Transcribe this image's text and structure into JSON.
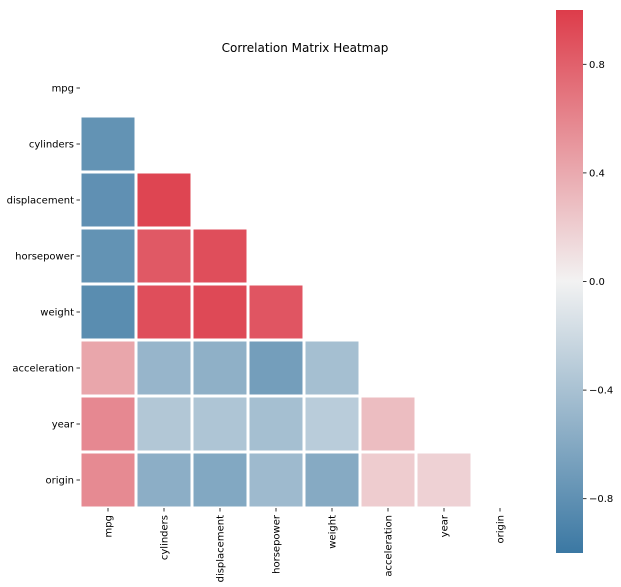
{
  "chart_data": {
    "type": "heatmap",
    "title": "Correlation Matrix Heatmap",
    "variables": [
      "mpg",
      "cylinders",
      "displacement",
      "horsepower",
      "weight",
      "acceleration",
      "year",
      "origin"
    ],
    "mask": "upper-triangle-including-diagonal",
    "matrix": [
      [
        null,
        null,
        null,
        null,
        null,
        null,
        null,
        null
      ],
      [
        -0.78,
        null,
        null,
        null,
        null,
        null,
        null,
        null
      ],
      [
        -0.8,
        0.95,
        null,
        null,
        null,
        null,
        null,
        null
      ],
      [
        -0.78,
        0.84,
        0.9,
        null,
        null,
        null,
        null,
        null
      ],
      [
        -0.83,
        0.9,
        0.93,
        0.86,
        null,
        null,
        null,
        null
      ],
      [
        0.42,
        -0.5,
        -0.54,
        -0.69,
        -0.42,
        null,
        null,
        null
      ],
      [
        0.58,
        -0.35,
        -0.37,
        -0.42,
        -0.31,
        0.29,
        null,
        null
      ],
      [
        0.57,
        -0.56,
        -0.61,
        -0.46,
        -0.59,
        0.21,
        0.18,
        null
      ]
    ],
    "colorbar": {
      "min": -1,
      "max": 1,
      "ticks": [
        0.8,
        0.4,
        0.0,
        -0.4,
        -0.8
      ],
      "tick_labels": [
        "0.8",
        "0.4",
        "0.0",
        "−0.4",
        "−0.8"
      ]
    },
    "colors": {
      "negative": "#3b78a3",
      "neutral": "#f2f2f2",
      "positive": "#dd3c4a",
      "cell_border": "#ffffff"
    }
  }
}
